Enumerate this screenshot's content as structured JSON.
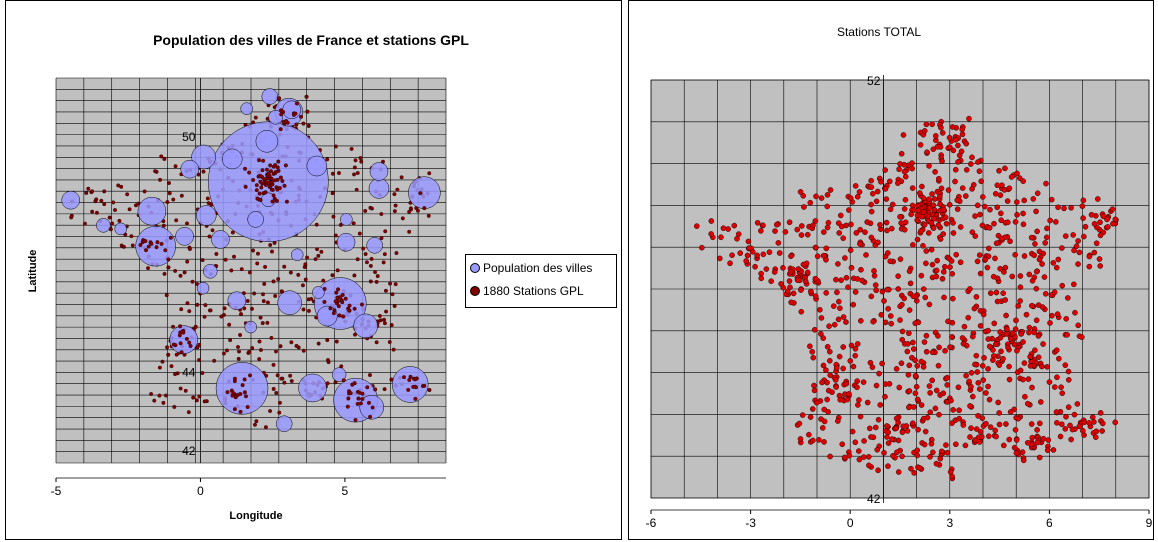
{
  "chart_data": [
    {
      "type": "scatter",
      "title": "Population des villes de France et stations GPL",
      "xlabel": "Longitude",
      "ylabel": "Latitude",
      "xlim": [
        -5,
        8.5
      ],
      "ylim": [
        41.7,
        51.5
      ],
      "x_ticks": [
        "-5",
        "0",
        "5"
      ],
      "y_ticks": [
        "50",
        "44",
        "42"
      ],
      "grid": true,
      "plot_background": "#c0c0c0",
      "legend_position": "right",
      "series": [
        {
          "name": "Population des villes",
          "marker": "bubble",
          "color": "#9999ff",
          "points": [
            {
              "x": 2.35,
              "y": 48.86,
              "size": 60
            },
            {
              "x": -1.55,
              "y": 47.22,
              "size": 20
            },
            {
              "x": 4.84,
              "y": 45.76,
              "size": 26
            },
            {
              "x": 5.37,
              "y": 43.3,
              "size": 22
            },
            {
              "x": 1.44,
              "y": 43.6,
              "size": 26
            },
            {
              "x": 7.26,
              "y": 43.7,
              "size": 18
            },
            {
              "x": -0.58,
              "y": 44.84,
              "size": 14
            },
            {
              "x": 3.06,
              "y": 50.63,
              "size": 14
            },
            {
              "x": 7.75,
              "y": 48.58,
              "size": 16
            },
            {
              "x": -1.68,
              "y": 48.11,
              "size": 14
            },
            {
              "x": 1.1,
              "y": 49.44,
              "size": 10
            },
            {
              "x": 0.11,
              "y": 49.49,
              "size": 12
            },
            {
              "x": 4.03,
              "y": 49.26,
              "size": 10
            },
            {
              "x": 3.88,
              "y": 43.61,
              "size": 14
            },
            {
              "x": 5.72,
              "y": 45.19,
              "size": 12
            },
            {
              "x": 6.18,
              "y": 48.69,
              "size": 10
            },
            {
              "x": 0.69,
              "y": 47.39,
              "size": 9
            },
            {
              "x": 5.04,
              "y": 47.32,
              "size": 9
            },
            {
              "x": 1.91,
              "y": 47.9,
              "size": 8
            },
            {
              "x": 3.09,
              "y": 45.78,
              "size": 12
            },
            {
              "x": 2.3,
              "y": 49.89,
              "size": 11
            },
            {
              "x": -4.49,
              "y": 48.39,
              "size": 9
            },
            {
              "x": -0.37,
              "y": 49.18,
              "size": 9
            },
            {
              "x": 0.2,
              "y": 48.0,
              "size": 10
            },
            {
              "x": 1.26,
              "y": 45.83,
              "size": 9
            },
            {
              "x": 6.03,
              "y": 47.24,
              "size": 8
            },
            {
              "x": 5.93,
              "y": 43.12,
              "size": 12
            },
            {
              "x": 4.39,
              "y": 45.44,
              "size": 10
            },
            {
              "x": 2.9,
              "y": 42.7,
              "size": 8
            },
            {
              "x": 6.18,
              "y": 49.12,
              "size": 9
            },
            {
              "x": 2.4,
              "y": 51.03,
              "size": 8
            },
            {
              "x": 1.6,
              "y": 50.72,
              "size": 6
            },
            {
              "x": -0.55,
              "y": 47.47,
              "size": 9
            },
            {
              "x": 0.34,
              "y": 46.58,
              "size": 7
            },
            {
              "x": 4.8,
              "y": 43.95,
              "size": 7
            },
            {
              "x": 1.74,
              "y": 45.16,
              "size": 6
            },
            {
              "x": 3.16,
              "y": 50.69,
              "size": 9
            },
            {
              "x": 4.35,
              "y": 50.85,
              "size": 0
            },
            {
              "x": 2.6,
              "y": 50.5,
              "size": 7
            },
            {
              "x": -3.36,
              "y": 47.75,
              "size": 7
            },
            {
              "x": -2.76,
              "y": 47.66,
              "size": 6
            },
            {
              "x": 0.09,
              "y": 46.15,
              "size": 6
            },
            {
              "x": 4.08,
              "y": 46.04,
              "size": 6
            },
            {
              "x": 3.35,
              "y": 47.0,
              "size": 6
            },
            {
              "x": 2.35,
              "y": 48.4,
              "size": 7
            },
            {
              "x": 5.05,
              "y": 47.9,
              "size": 6
            }
          ]
        },
        {
          "name": "1880 Stations GPL",
          "marker": "circle",
          "color": "#800000"
        }
      ]
    },
    {
      "type": "scatter",
      "title": "Stations TOTAL",
      "xlabel": "",
      "ylabel": "",
      "xlim": [
        -6,
        9
      ],
      "ylim": [
        42,
        52
      ],
      "x_ticks": [
        "-6",
        "-3",
        "0",
        "3",
        "6",
        "9"
      ],
      "y_ticks": [
        "52",
        "42"
      ],
      "grid": true,
      "plot_background": "#c0c0c0",
      "series": [
        {
          "name": "",
          "marker": "circle",
          "color": "#dd0000"
        }
      ]
    }
  ]
}
